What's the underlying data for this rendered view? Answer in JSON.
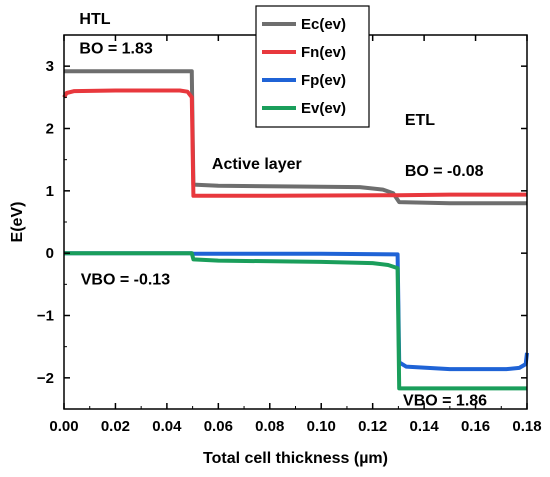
{
  "chart_data": {
    "type": "line",
    "xlabel": "Total cell thickness (µm)",
    "ylabel": "E(eV)",
    "xlim": [
      0.0,
      0.18
    ],
    "ylim": [
      -2.5,
      3.5
    ],
    "xticks": [
      0.0,
      0.02,
      0.04,
      0.06,
      0.08,
      0.1,
      0.12,
      0.14,
      0.16,
      0.18
    ],
    "xtick_labels": [
      "0.00",
      "0.02",
      "0.04",
      "0.06",
      "0.08",
      "0.10",
      "0.12",
      "0.14",
      "0.16",
      "0.18"
    ],
    "yticks": [
      -2,
      -1,
      0,
      1,
      2,
      3
    ],
    "ytick_labels": [
      "−2",
      "−1",
      "0",
      "1",
      "2",
      "3"
    ],
    "legend_position": "top-center",
    "series": [
      {
        "name": "Ec(ev)",
        "color": "#6e6e6e",
        "points": [
          [
            0.0,
            2.92
          ],
          [
            0.0497,
            2.92
          ],
          [
            0.0497,
            2.88
          ],
          [
            0.0503,
            1.1
          ],
          [
            0.06,
            1.08
          ],
          [
            0.09,
            1.07
          ],
          [
            0.115,
            1.06
          ],
          [
            0.124,
            1.02
          ],
          [
            0.128,
            0.96
          ],
          [
            0.1303,
            0.82
          ],
          [
            0.15,
            0.8
          ],
          [
            0.18,
            0.8
          ]
        ]
      },
      {
        "name": "Fn(ev)",
        "color": "#e8383d",
        "points": [
          [
            0.0,
            2.5
          ],
          [
            0.001,
            2.57
          ],
          [
            0.004,
            2.6
          ],
          [
            0.02,
            2.61
          ],
          [
            0.045,
            2.61
          ],
          [
            0.048,
            2.59
          ],
          [
            0.0497,
            2.5
          ],
          [
            0.0503,
            0.92
          ],
          [
            0.08,
            0.92
          ],
          [
            0.13,
            0.93
          ],
          [
            0.15,
            0.94
          ],
          [
            0.18,
            0.94
          ]
        ]
      },
      {
        "name": "Fp(ev)",
        "color": "#1f63d6",
        "points": [
          [
            0.0,
            0.0
          ],
          [
            0.0497,
            0.0
          ],
          [
            0.0503,
            -0.01
          ],
          [
            0.1,
            -0.01
          ],
          [
            0.1297,
            -0.02
          ],
          [
            0.1303,
            -1.75
          ],
          [
            0.133,
            -1.82
          ],
          [
            0.15,
            -1.86
          ],
          [
            0.172,
            -1.86
          ],
          [
            0.177,
            -1.84
          ],
          [
            0.1795,
            -1.78
          ],
          [
            0.18,
            -1.6
          ]
        ]
      },
      {
        "name": "Ev(ev)",
        "color": "#1a9e5b",
        "points": [
          [
            0.0,
            0.0
          ],
          [
            0.0497,
            0.0
          ],
          [
            0.0503,
            -0.1
          ],
          [
            0.06,
            -0.12
          ],
          [
            0.1,
            -0.14
          ],
          [
            0.12,
            -0.16
          ],
          [
            0.126,
            -0.19
          ],
          [
            0.1297,
            -0.24
          ],
          [
            0.1303,
            -2.17
          ],
          [
            0.15,
            -2.17
          ],
          [
            0.18,
            -2.17
          ]
        ]
      }
    ],
    "annotations": [
      {
        "text": "HTL",
        "x": 0.006,
        "y": 3.68
      },
      {
        "text": "BO = 1.83",
        "x": 0.006,
        "y": 3.2
      },
      {
        "text": "Active layer",
        "x": 0.0575,
        "y": 1.35
      },
      {
        "text": "ETL",
        "x": 0.1325,
        "y": 2.06
      },
      {
        "text": "BO = -0.08",
        "x": 0.1325,
        "y": 1.24
      },
      {
        "text": "VBO = -0.13",
        "x": 0.0065,
        "y": -0.5
      },
      {
        "text": "VBO = 1.86",
        "x": 0.1318,
        "y": -2.44
      }
    ]
  }
}
